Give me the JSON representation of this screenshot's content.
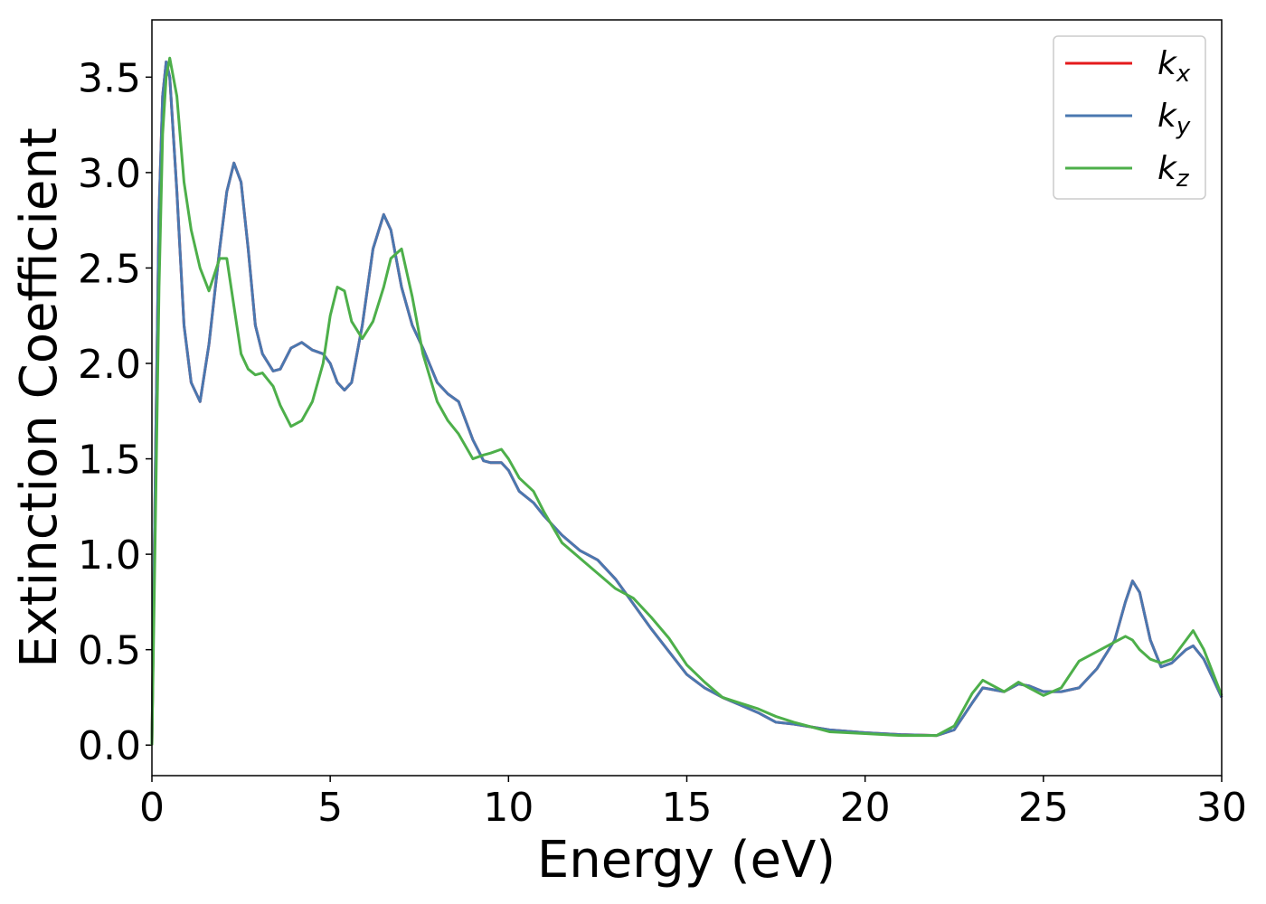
{
  "chart_data": {
    "type": "line",
    "xlabel": "Energy (eV)",
    "ylabel": "Extinction Coefficient",
    "x": [
      0,
      0.1,
      0.2,
      0.3,
      0.4,
      0.5,
      0.7,
      0.9,
      1.1,
      1.35,
      1.6,
      1.9,
      2.1,
      2.3,
      2.5,
      2.7,
      2.9,
      3.1,
      3.4,
      3.6,
      3.9,
      4.2,
      4.5,
      4.8,
      5.0,
      5.2,
      5.4,
      5.6,
      5.9,
      6.2,
      6.5,
      6.7,
      7.0,
      7.3,
      7.6,
      8.0,
      8.3,
      8.6,
      9.0,
      9.3,
      9.5,
      9.8,
      10.0,
      10.3,
      10.7,
      11.0,
      11.5,
      12.0,
      12.5,
      13.0,
      13.5,
      14.0,
      14.5,
      15.0,
      15.5,
      16.0,
      16.5,
      17.0,
      17.5,
      18.0,
      19.0,
      20.0,
      21.0,
      22.0,
      22.5,
      23.0,
      23.3,
      23.6,
      23.9,
      24.3,
      24.6,
      25.0,
      25.5,
      26.0,
      26.5,
      27.0,
      27.3,
      27.5,
      27.7,
      28.0,
      28.3,
      28.6,
      29.0,
      29.2,
      29.5,
      30.0
    ],
    "series": [
      {
        "name": "kx",
        "color": "#e41a1c",
        "values": [
          0.0,
          1.5,
          2.8,
          3.4,
          3.58,
          3.5,
          2.9,
          2.2,
          1.9,
          1.8,
          2.1,
          2.6,
          2.9,
          3.05,
          2.95,
          2.6,
          2.2,
          2.05,
          1.96,
          1.97,
          2.08,
          2.11,
          2.07,
          2.05,
          2.0,
          1.9,
          1.86,
          1.9,
          2.2,
          2.6,
          2.78,
          2.7,
          2.4,
          2.2,
          2.08,
          1.9,
          1.84,
          1.8,
          1.6,
          1.49,
          1.48,
          1.48,
          1.44,
          1.33,
          1.27,
          1.2,
          1.1,
          1.02,
          0.97,
          0.87,
          0.74,
          0.61,
          0.49,
          0.37,
          0.3,
          0.25,
          0.21,
          0.17,
          0.12,
          0.11,
          0.08,
          0.065,
          0.055,
          0.05,
          0.08,
          0.22,
          0.3,
          0.29,
          0.28,
          0.32,
          0.31,
          0.28,
          0.28,
          0.3,
          0.4,
          0.55,
          0.75,
          0.86,
          0.8,
          0.55,
          0.41,
          0.43,
          0.5,
          0.52,
          0.45,
          0.25
        ]
      },
      {
        "name": "ky",
        "color": "#4a78b0",
        "values": [
          0.0,
          1.5,
          2.8,
          3.4,
          3.58,
          3.5,
          2.9,
          2.2,
          1.9,
          1.8,
          2.1,
          2.6,
          2.9,
          3.05,
          2.95,
          2.6,
          2.2,
          2.05,
          1.96,
          1.97,
          2.08,
          2.11,
          2.07,
          2.05,
          2.0,
          1.9,
          1.86,
          1.9,
          2.2,
          2.6,
          2.78,
          2.7,
          2.4,
          2.2,
          2.08,
          1.9,
          1.84,
          1.8,
          1.6,
          1.49,
          1.48,
          1.48,
          1.44,
          1.33,
          1.27,
          1.2,
          1.1,
          1.02,
          0.97,
          0.87,
          0.74,
          0.61,
          0.49,
          0.37,
          0.3,
          0.25,
          0.21,
          0.17,
          0.12,
          0.11,
          0.08,
          0.065,
          0.055,
          0.05,
          0.08,
          0.22,
          0.3,
          0.29,
          0.28,
          0.32,
          0.31,
          0.28,
          0.28,
          0.3,
          0.4,
          0.55,
          0.75,
          0.86,
          0.8,
          0.55,
          0.41,
          0.43,
          0.5,
          0.52,
          0.45,
          0.25
        ]
      },
      {
        "name": "kz",
        "color": "#4daf4a",
        "values": [
          0.0,
          1.2,
          2.4,
          3.2,
          3.5,
          3.6,
          3.4,
          2.95,
          2.7,
          2.5,
          2.38,
          2.55,
          2.55,
          2.3,
          2.05,
          1.97,
          1.94,
          1.95,
          1.88,
          1.78,
          1.67,
          1.7,
          1.8,
          2.0,
          2.25,
          2.4,
          2.38,
          2.22,
          2.13,
          2.22,
          2.4,
          2.55,
          2.6,
          2.35,
          2.05,
          1.8,
          1.7,
          1.63,
          1.5,
          1.52,
          1.53,
          1.55,
          1.5,
          1.4,
          1.33,
          1.22,
          1.06,
          0.98,
          0.9,
          0.82,
          0.77,
          0.67,
          0.56,
          0.42,
          0.33,
          0.25,
          0.22,
          0.19,
          0.15,
          0.12,
          0.07,
          0.06,
          0.05,
          0.05,
          0.1,
          0.27,
          0.34,
          0.31,
          0.28,
          0.33,
          0.3,
          0.26,
          0.3,
          0.44,
          0.49,
          0.54,
          0.57,
          0.55,
          0.5,
          0.45,
          0.43,
          0.45,
          0.55,
          0.6,
          0.5,
          0.26
        ]
      }
    ],
    "xlim": [
      0,
      30
    ],
    "xticks": [
      0,
      5,
      10,
      15,
      20,
      25,
      30
    ],
    "ylim": [
      -0.16,
      3.8
    ],
    "yticks": [
      {
        "value": 0,
        "label": "0.0"
      },
      0.5,
      {
        "value": 1,
        "label": "1.0"
      },
      1.5,
      {
        "value": 2,
        "label": "2.0"
      },
      2.5,
      {
        "value": 3,
        "label": "3.0"
      },
      3.5
    ],
    "legend": "upper right",
    "grid": false
  }
}
